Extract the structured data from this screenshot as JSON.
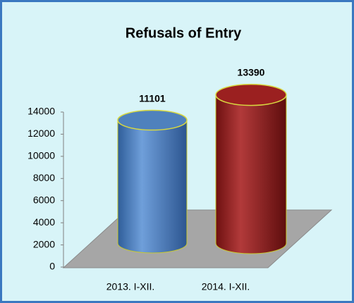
{
  "chart_data": {
    "type": "bar",
    "title": "Refusals of Entry",
    "categories": [
      "2013. I-XII.",
      "2014. I-XII."
    ],
    "values": [
      11101,
      13390
    ],
    "colors": [
      "#4f81bd",
      "#9b2020"
    ],
    "ylim": [
      0,
      14000
    ],
    "yticks": [
      0,
      2000,
      4000,
      6000,
      8000,
      10000,
      12000,
      14000
    ]
  }
}
